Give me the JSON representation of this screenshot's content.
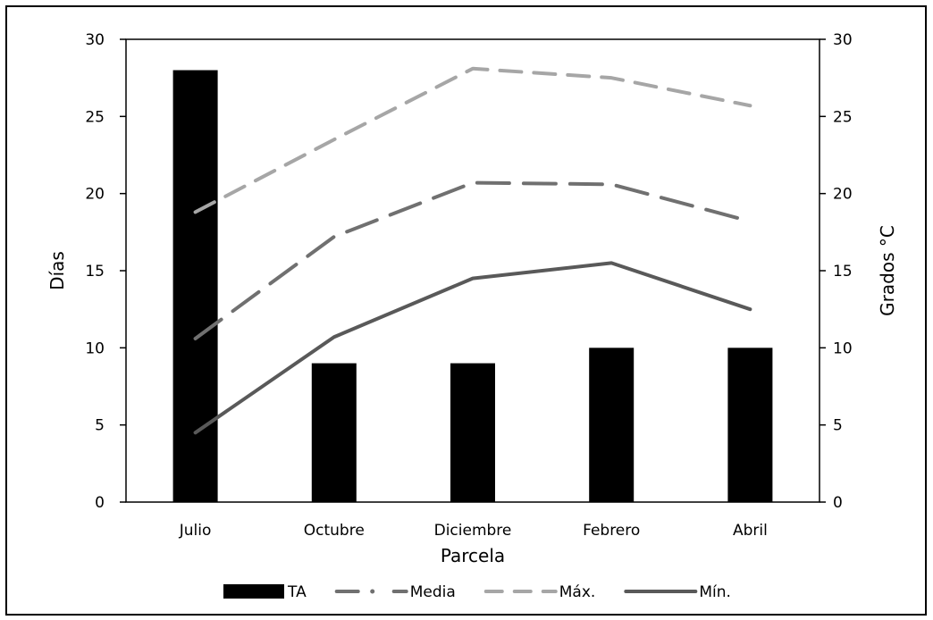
{
  "chart_data": {
    "type": "bar",
    "title": "",
    "xlabel": "Parcela",
    "ylabel": "Días",
    "y2label": "Grados °C",
    "categories": [
      "Julio",
      "Octubre",
      "Diciembre",
      "Febrero",
      "Abril"
    ],
    "ylim": [
      0,
      30
    ],
    "y2lim": [
      0,
      30
    ],
    "yticks": [
      "0",
      "5",
      "10",
      "15",
      "20",
      "25",
      "30"
    ],
    "y2ticks": [
      "0",
      "5",
      "10",
      "15",
      "20",
      "25",
      "30"
    ],
    "grid": false,
    "legend_position": "bottom",
    "series": [
      {
        "name": "TA",
        "kind": "bar",
        "axis": "left",
        "color": "#000000",
        "values": [
          28,
          9,
          9,
          10,
          10
        ]
      },
      {
        "name": "Media",
        "kind": "line",
        "style": "long-dash",
        "axis": "right",
        "color": "#707070",
        "values": [
          10.6,
          17.2,
          20.7,
          20.6,
          18.2
        ]
      },
      {
        "name": "Máx.",
        "kind": "line",
        "style": "dash",
        "axis": "right",
        "color": "#a6a6a6",
        "values": [
          18.8,
          23.5,
          28.1,
          27.5,
          25.7
        ]
      },
      {
        "name": "Mín.",
        "kind": "line",
        "style": "solid",
        "axis": "right",
        "color": "#595959",
        "values": [
          4.5,
          10.7,
          14.5,
          15.5,
          12.5
        ]
      }
    ]
  }
}
